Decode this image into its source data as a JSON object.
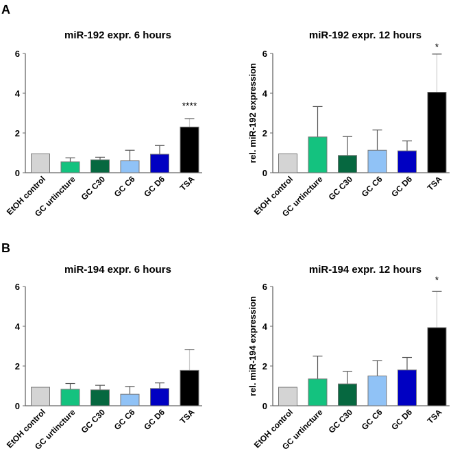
{
  "panels": [
    "A",
    "B"
  ],
  "colors": [
    "#d4d4d4",
    "#14c27f",
    "#066840",
    "#90c2f6",
    "#0000c2",
    "#000000"
  ],
  "chart_data": [
    {
      "type": "bar",
      "panel": "A",
      "title": "miR-192 expr. 6 hours",
      "ylabel": "",
      "ylim": [
        0,
        6
      ],
      "yticks": [
        0,
        2,
        4,
        6
      ],
      "categories": [
        "EtOH control",
        "GC urtincture",
        "GC C30",
        "GC C6",
        "GC D6",
        "TSA"
      ],
      "values": [
        0.95,
        0.55,
        0.65,
        0.6,
        0.93,
        2.3
      ],
      "error_upper": [
        0,
        0.2,
        0.13,
        0.53,
        0.44,
        0.42
      ],
      "significance": [
        "",
        "",
        "",
        "",
        "",
        "****"
      ]
    },
    {
      "type": "bar",
      "panel": "A",
      "title": "miR-192 expr. 12 hours",
      "ylabel": "rel. miR-192 expression",
      "ylim": [
        0,
        6
      ],
      "yticks": [
        0,
        2,
        4,
        6
      ],
      "categories": [
        "EtOH control",
        "GC urtincture",
        "GC C30",
        "GC C6",
        "GC D6",
        "TSA"
      ],
      "values": [
        0.95,
        1.8,
        0.87,
        1.13,
        1.1,
        4.05
      ],
      "error_upper": [
        0,
        1.53,
        0.95,
        1.02,
        0.5,
        1.92
      ],
      "significance": [
        "",
        "",
        "",
        "",
        "",
        "*"
      ]
    },
    {
      "type": "bar",
      "panel": "B",
      "title": "miR-194 expr. 6 hours",
      "ylabel": "",
      "ylim": [
        0,
        6
      ],
      "yticks": [
        0,
        2,
        4,
        6
      ],
      "categories": [
        "EtOH control",
        "GC urtincture",
        "GC C30",
        "GC C6",
        "GC D6",
        "TSA"
      ],
      "values": [
        0.93,
        0.83,
        0.8,
        0.58,
        0.87,
        1.78
      ],
      "error_upper": [
        0,
        0.29,
        0.23,
        0.39,
        0.28,
        1.05
      ],
      "significance": [
        "",
        "",
        "",
        "",
        "",
        ""
      ]
    },
    {
      "type": "bar",
      "panel": "B",
      "title": "miR-194 expr. 12 hours",
      "ylabel": "rel. miR-194 expression",
      "ylim": [
        0,
        6
      ],
      "yticks": [
        0,
        2,
        4,
        6
      ],
      "categories": [
        "EtOH control",
        "GC urtincture",
        "GC C30",
        "GC C6",
        "GC D6",
        "TSA"
      ],
      "values": [
        0.93,
        1.35,
        1.1,
        1.5,
        1.8,
        3.93
      ],
      "error_upper": [
        0,
        1.15,
        0.63,
        0.77,
        0.63,
        1.82
      ],
      "significance": [
        "",
        "",
        "",
        "",
        "",
        "*"
      ]
    }
  ]
}
